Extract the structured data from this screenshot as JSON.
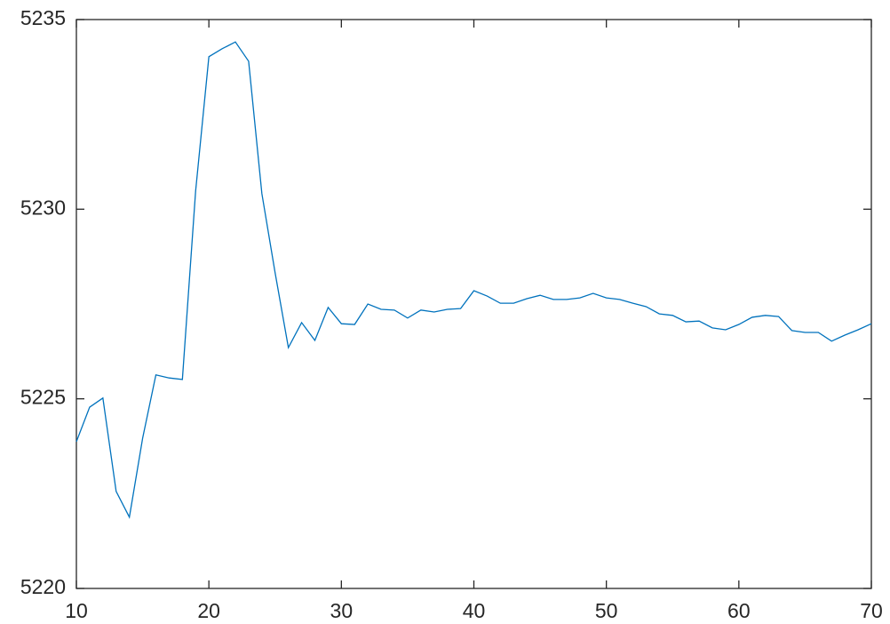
{
  "chart_data": {
    "type": "line",
    "x": [
      10,
      11,
      12,
      13,
      14,
      15,
      16,
      17,
      18,
      19,
      20,
      21,
      22,
      23,
      24,
      25,
      26,
      27,
      28,
      29,
      30,
      31,
      32,
      33,
      34,
      35,
      36,
      37,
      38,
      39,
      40,
      41,
      42,
      43,
      44,
      45,
      46,
      47,
      48,
      49,
      50,
      51,
      52,
      53,
      54,
      55,
      56,
      57,
      58,
      59,
      60,
      61,
      62,
      63,
      64,
      65,
      66,
      67,
      68,
      69,
      70
    ],
    "values": [
      5223.87,
      5224.78,
      5225.02,
      5222.56,
      5221.88,
      5223.96,
      5225.63,
      5225.55,
      5225.51,
      5230.48,
      5234.02,
      5234.23,
      5234.41,
      5233.9,
      5230.41,
      5228.32,
      5226.35,
      5227.01,
      5226.54,
      5227.41,
      5226.98,
      5226.96,
      5227.5,
      5227.36,
      5227.34,
      5227.13,
      5227.34,
      5227.29,
      5227.36,
      5227.38,
      5227.85,
      5227.71,
      5227.52,
      5227.52,
      5227.64,
      5227.73,
      5227.62,
      5227.62,
      5227.66,
      5227.78,
      5227.66,
      5227.62,
      5227.52,
      5227.43,
      5227.24,
      5227.2,
      5227.03,
      5227.05,
      5226.87,
      5226.82,
      5226.96,
      5227.15,
      5227.2,
      5227.17,
      5226.8,
      5226.75,
      5226.75,
      5226.52,
      5226.68,
      5226.82,
      5226.98
    ],
    "color": "#0072bd",
    "xlim": [
      10,
      70
    ],
    "xticks": [
      10,
      20,
      30,
      40,
      50,
      60,
      70
    ],
    "ylim": [
      5220,
      5235
    ],
    "yticks": [
      5220,
      5225,
      5230,
      5235
    ],
    "grid": false
  }
}
